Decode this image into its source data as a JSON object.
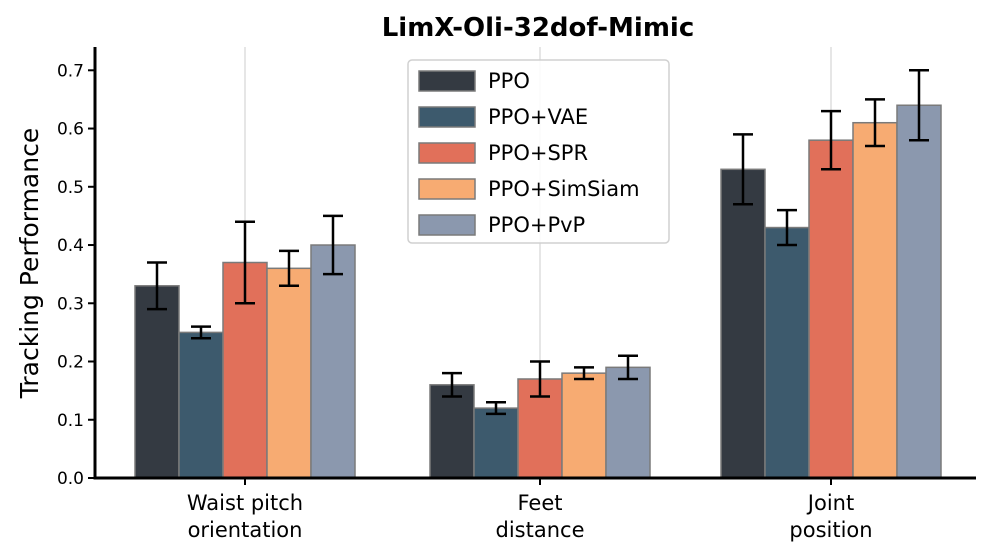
{
  "chart_data": {
    "type": "bar",
    "title": "LimX-Oli-32dof-Mimic",
    "xlabel": "",
    "ylabel": "Tracking Performance",
    "ylim": [
      0,
      0.74
    ],
    "yticks": [
      "0.0",
      "0.1",
      "0.2",
      "0.3",
      "0.4",
      "0.5",
      "0.6",
      "0.7"
    ],
    "categories": [
      [
        "Waist pitch",
        "orientation"
      ],
      [
        "Feet",
        "distance"
      ],
      [
        "Joint",
        "position"
      ]
    ],
    "series": [
      {
        "name": "PPO",
        "color": "#343a42",
        "values": [
          0.33,
          0.16,
          0.53
        ],
        "errors": [
          0.04,
          0.02,
          0.06
        ]
      },
      {
        "name": "PPO+VAE",
        "color": "#3d5a6d",
        "values": [
          0.25,
          0.12,
          0.43
        ],
        "errors": [
          0.01,
          0.01,
          0.03
        ]
      },
      {
        "name": "PPO+SPR",
        "color": "#e1705a",
        "values": [
          0.37,
          0.17,
          0.58
        ],
        "errors": [
          0.07,
          0.03,
          0.05
        ]
      },
      {
        "name": "PPO+SimSiam",
        "color": "#f7ab72",
        "values": [
          0.36,
          0.18,
          0.61
        ],
        "errors": [
          0.03,
          0.01,
          0.04
        ]
      },
      {
        "name": "PPO+PvP",
        "color": "#8b98ae",
        "values": [
          0.4,
          0.19,
          0.64
        ],
        "errors": [
          0.05,
          0.02,
          0.06
        ]
      }
    ],
    "grid": "vertical-at-categories",
    "legend": "top-center"
  }
}
